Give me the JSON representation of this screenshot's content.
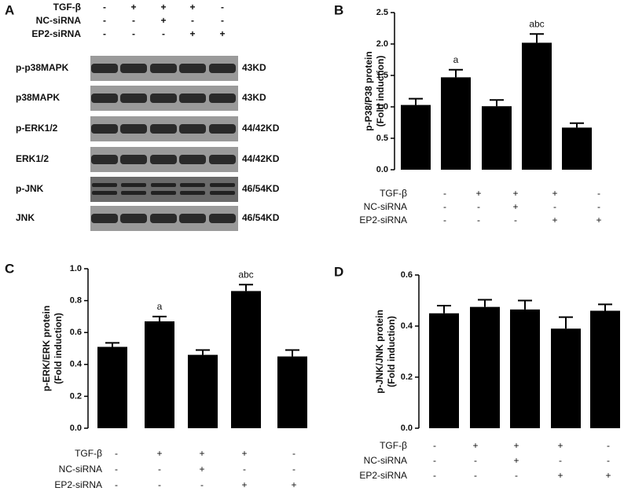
{
  "blot": {
    "panel": "A",
    "conditions": [
      {
        "label": "TGF-β",
        "signs": [
          "-",
          "+",
          "+",
          "+",
          "-"
        ]
      },
      {
        "label": "NC-siRNA",
        "signs": [
          "-",
          "-",
          "+",
          "-",
          "-"
        ]
      },
      {
        "label": "EP2-siRNA",
        "signs": [
          "-",
          "-",
          "-",
          "+",
          "+"
        ]
      }
    ],
    "bands": [
      {
        "label": "p-p38MAPK",
        "size": "43KD"
      },
      {
        "label": "p38MAPK",
        "size": "43KD"
      },
      {
        "label": "p-ERK1/2",
        "size": "44/42KD"
      },
      {
        "label": "ERK1/2",
        "size": "44/42KD"
      },
      {
        "label": "p-JNK",
        "size": "46/54KD"
      },
      {
        "label": "JNK",
        "size": "46/54KD"
      }
    ]
  },
  "chart_data": [
    {
      "type": "bar",
      "panel": "B",
      "ylabel": [
        "p-P38/P38 protein",
        "(Fold induction)"
      ],
      "color": "#000000",
      "values": [
        1.03,
        1.47,
        1.01,
        2.02,
        0.67
      ],
      "errors": [
        0.1,
        0.12,
        0.1,
        0.14,
        0.07
      ],
      "annotations": [
        null,
        "a",
        null,
        "abc",
        null
      ],
      "ylim": [
        0,
        2.5
      ],
      "yticks": [
        {
          "value": 0,
          "label": "0.0"
        },
        0.5,
        {
          "value": 1,
          "label": "1.0"
        },
        1.5,
        {
          "value": 2,
          "label": "2.0"
        },
        2.5
      ],
      "conditions": [
        {
          "label": "TGF-β",
          "signs": [
            "-",
            "+",
            "+",
            "+",
            "-"
          ]
        },
        {
          "label": "NC-siRNA",
          "signs": [
            "-",
            "-",
            "+",
            "-",
            "-"
          ]
        },
        {
          "label": "EP2-siRNA",
          "signs": [
            "-",
            "-",
            "-",
            "+",
            "+"
          ]
        }
      ]
    },
    {
      "type": "bar",
      "panel": "C",
      "ylabel": [
        "p-ERK/ERK protein",
        "(Fold induction)"
      ],
      "color": "#000000",
      "values": [
        0.51,
        0.67,
        0.46,
        0.86,
        0.45
      ],
      "errors": [
        0.025,
        0.03,
        0.03,
        0.04,
        0.04
      ],
      "annotations": [
        null,
        "a",
        null,
        "abc",
        null
      ],
      "ylim": [
        0,
        1
      ],
      "yticks": [
        {
          "value": 0,
          "label": "0.0"
        },
        0.2,
        0.4,
        0.6,
        0.8,
        {
          "value": 1,
          "label": "1.0"
        }
      ],
      "conditions": [
        {
          "label": "TGF-β",
          "signs": [
            "-",
            "+",
            "+",
            "+",
            "-"
          ]
        },
        {
          "label": "NC-siRNA",
          "signs": [
            "-",
            "-",
            "+",
            "-",
            "-"
          ]
        },
        {
          "label": "EP2-siRNA",
          "signs": [
            "-",
            "-",
            "-",
            "+",
            "+"
          ]
        }
      ]
    },
    {
      "type": "bar",
      "panel": "D",
      "ylabel": [
        "p-JNK/JNK protein",
        "(Fold induction)"
      ],
      "color": "#000000",
      "values": [
        0.45,
        0.475,
        0.465,
        0.39,
        0.46
      ],
      "errors": [
        0.03,
        0.028,
        0.035,
        0.045,
        0.025
      ],
      "annotations": [
        null,
        null,
        null,
        null,
        null
      ],
      "ylim": [
        0,
        0.6
      ],
      "yticks": [
        {
          "value": 0,
          "label": "0.0"
        },
        0.2,
        0.4,
        0.6
      ],
      "conditions": [
        {
          "label": "TGF-β",
          "signs": [
            "-",
            "+",
            "+",
            "+",
            "-"
          ]
        },
        {
          "label": "NC-siRNA",
          "signs": [
            "-",
            "-",
            "+",
            "-",
            "-"
          ]
        },
        {
          "label": "EP2-siRNA",
          "signs": [
            "-",
            "-",
            "-",
            "+",
            "+"
          ]
        }
      ]
    }
  ]
}
